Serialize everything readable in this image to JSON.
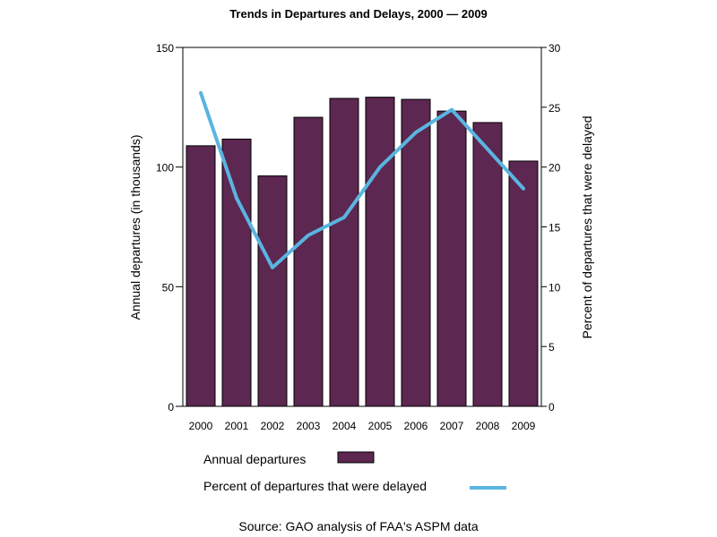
{
  "chart_data": {
    "type": "bar",
    "title": "Trends in Departures and Delays, 2000 — 2009",
    "xlabel": "",
    "ylabel": "Annual departures (in thousands)",
    "y2label": "Percent of departures that were delayed",
    "categories": [
      "2000",
      "2001",
      "2002",
      "2003",
      "2004",
      "2005",
      "2006",
      "2007",
      "2008",
      "2009"
    ],
    "ylim": [
      0,
      150
    ],
    "y2lim": [
      0,
      30
    ],
    "yticks": [
      0,
      50,
      100,
      150
    ],
    "y2ticks": [
      0,
      5,
      10,
      15,
      20,
      25,
      30
    ],
    "grid": false,
    "series": [
      {
        "name": "Annual departures",
        "type": "bar",
        "axis": "left",
        "color": "#5c2750",
        "values": [
          108.9,
          111.7,
          96.3,
          120.8,
          128.7,
          129.2,
          128.3,
          123.4,
          118.6,
          102.5
        ]
      },
      {
        "name": "Percent of departures that were delayed",
        "type": "line",
        "axis": "right",
        "color": "#5ab4e0",
        "values": [
          26.2,
          17.4,
          11.6,
          14.3,
          15.8,
          20.0,
          22.9,
          24.8,
          21.5,
          18.2
        ]
      }
    ],
    "legend": {
      "placement": "bottom",
      "entries": [
        "Annual departures",
        "Percent of departures that were delayed"
      ]
    },
    "annotations": [
      "Source: GAO analysis of FAA's ASPM data"
    ]
  }
}
